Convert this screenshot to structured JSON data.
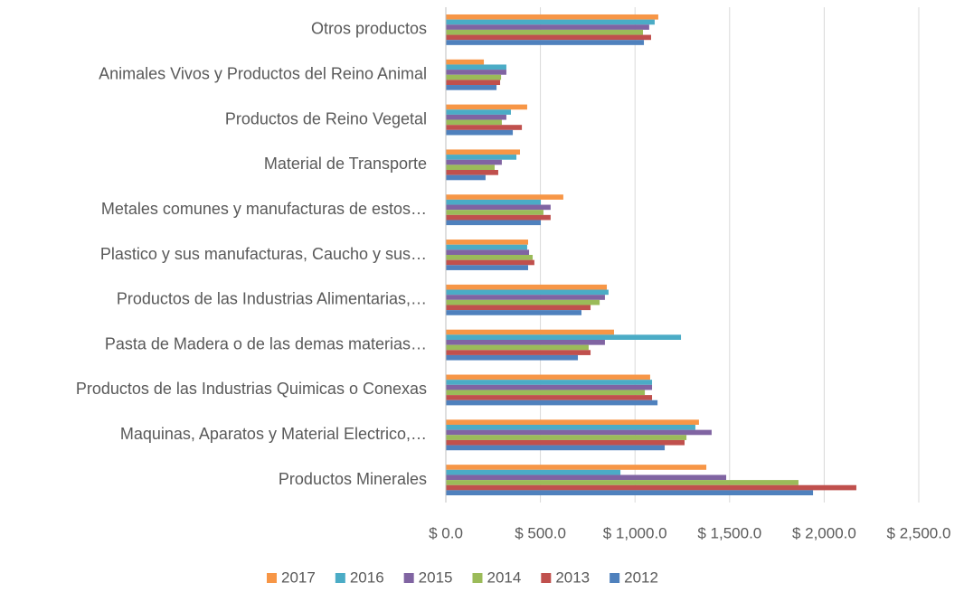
{
  "chart_data": {
    "type": "hbar",
    "categories": [
      "Otros productos",
      "Animales Vivos y Productos del Reino Animal",
      "Productos de Reino Vegetal",
      "Material de Transporte",
      "Metales comunes y manufacturas de estos…",
      "Plastico y sus manufacturas, Caucho y sus…",
      "Productos de las Industrias Alimentarias,…",
      "Pasta de Madera o de las demas materias…",
      "Productos de las Industrias Quimicas o Conexas",
      "Maquinas, Aparatos y Material Electrico,…",
      "Productos Minerales"
    ],
    "series": [
      {
        "name": "2017",
        "color": "#f79646",
        "values": [
          1123,
          201,
          430,
          392,
          621,
          435,
          851,
          889,
          1080,
          1338,
          1377
        ]
      },
      {
        "name": "2016",
        "color": "#4bacc6",
        "values": [
          1104,
          320,
          344,
          373,
          502,
          430,
          860,
          1243,
          1090,
          1319,
          923
        ]
      },
      {
        "name": "2015",
        "color": "#8064a2",
        "values": [
          1075,
          320,
          320,
          296,
          554,
          440,
          841,
          841,
          1090,
          1405,
          1482
        ]
      },
      {
        "name": "2014",
        "color": "#9bbb59",
        "values": [
          1042,
          292,
          296,
          258,
          516,
          459,
          813,
          755,
          1052,
          1272,
          1864
        ]
      },
      {
        "name": "2013",
        "color": "#c0504d",
        "values": [
          1085,
          287,
          402,
          277,
          554,
          468,
          765,
          765,
          1090,
          1262,
          2170
        ]
      },
      {
        "name": "2012",
        "color": "#4f81bd",
        "values": [
          1047,
          268,
          354,
          210,
          502,
          435,
          717,
          698,
          1119,
          1157,
          1941
        ]
      }
    ],
    "xlim": [
      0,
      2500
    ],
    "xticks": [
      {
        "value": 0,
        "label": "$ 0.0"
      },
      {
        "value": 500,
        "label": "$ 500.0"
      },
      {
        "value": 1000,
        "label": "$ 1,000.0"
      },
      {
        "value": 1500,
        "label": "$ 1,500.0"
      },
      {
        "value": 2000,
        "label": "$ 2,000.0"
      },
      {
        "value": 2500,
        "label": "$ 2,500.0"
      }
    ],
    "grid": true,
    "legend": "bottom"
  }
}
